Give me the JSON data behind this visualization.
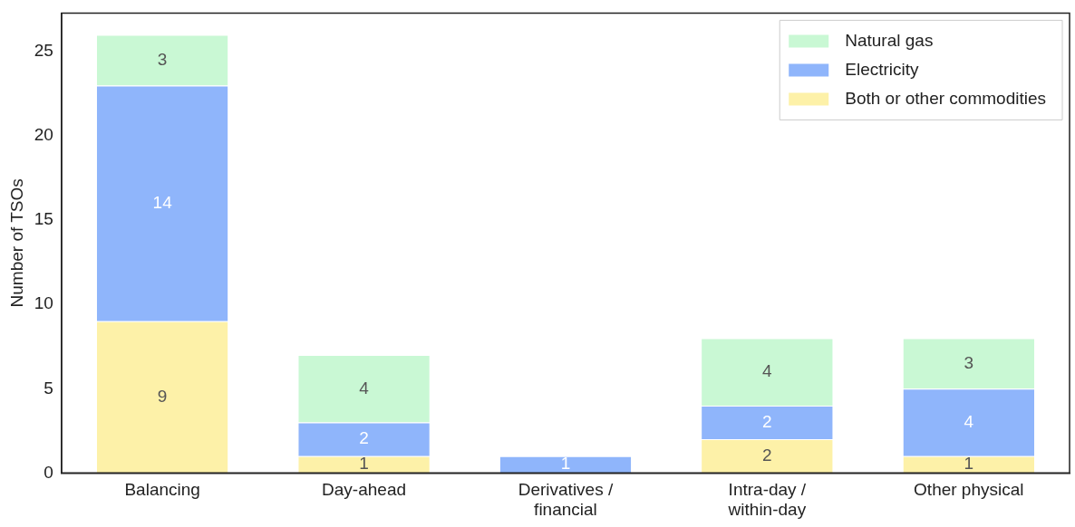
{
  "chart_data": {
    "type": "bar",
    "stacked": true,
    "ylabel": "Number of TSOs",
    "categories": [
      "Balancing",
      "Day-ahead",
      "Derivatives / financial",
      "Intra-day / within-day",
      "Other physical"
    ],
    "series": [
      {
        "name": "Both or other commodities",
        "color": "#fdf1a8",
        "values": [
          9,
          1,
          null,
          2,
          1
        ]
      },
      {
        "name": "Electricity",
        "color": "#8fb5fb",
        "values": [
          14,
          2,
          1,
          2,
          4
        ]
      },
      {
        "name": "Natural gas",
        "color": "#c9f8d4",
        "values": [
          3,
          4,
          null,
          4,
          3
        ]
      }
    ],
    "ylim": [
      0,
      27.3
    ],
    "yticks": [
      0,
      5,
      10,
      15,
      20,
      25
    ],
    "grid": false,
    "legend": "top right",
    "data_labels": true
  }
}
